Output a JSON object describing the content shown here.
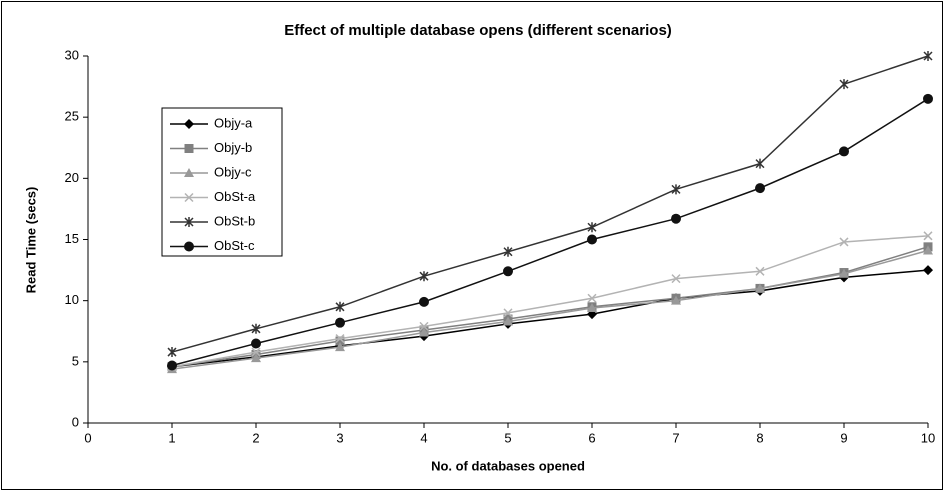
{
  "chart_data": {
    "type": "line",
    "title": "Effect of multiple database opens (different scenarios)",
    "xlabel": "No. of databases opened",
    "ylabel": "Read Time (secs)",
    "x": [
      1,
      2,
      3,
      4,
      5,
      6,
      7,
      8,
      9,
      10
    ],
    "xlim": [
      0,
      10
    ],
    "xticks": [
      0,
      1,
      2,
      3,
      4,
      5,
      6,
      7,
      8,
      9,
      10
    ],
    "ylim": [
      0,
      30
    ],
    "yticks": [
      0,
      5,
      10,
      15,
      20,
      25,
      30
    ],
    "grid": false,
    "legend": "upper left",
    "series": [
      {
        "name": "Objy-a",
        "color": "#000000",
        "marker": "diamond",
        "values": [
          4.6,
          5.4,
          6.3,
          7.1,
          8.1,
          8.9,
          10.2,
          10.8,
          11.9,
          12.5
        ]
      },
      {
        "name": "Objy-b",
        "color": "#808080",
        "marker": "square",
        "values": [
          4.6,
          5.6,
          6.7,
          7.6,
          8.5,
          9.5,
          10.2,
          11.0,
          12.3,
          14.4
        ]
      },
      {
        "name": "Objy-c",
        "color": "#999999",
        "marker": "triangle",
        "values": [
          4.4,
          5.3,
          6.2,
          7.4,
          8.3,
          9.4,
          10.0,
          11.0,
          12.2,
          14.1
        ]
      },
      {
        "name": "ObSt-a",
        "color": "#b3b3b3",
        "marker": "x",
        "values": [
          4.6,
          5.8,
          6.9,
          7.9,
          9.0,
          10.2,
          11.8,
          12.4,
          14.8,
          15.3
        ]
      },
      {
        "name": "ObSt-b",
        "color": "#333333",
        "marker": "star",
        "values": [
          5.8,
          7.7,
          9.5,
          12.0,
          14.0,
          16.0,
          19.1,
          21.2,
          27.7,
          30.0
        ]
      },
      {
        "name": "ObSt-c",
        "color": "#111111",
        "marker": "circle",
        "values": [
          4.7,
          6.5,
          8.2,
          9.9,
          12.4,
          15.0,
          16.7,
          19.2,
          22.2,
          26.5
        ]
      }
    ]
  }
}
